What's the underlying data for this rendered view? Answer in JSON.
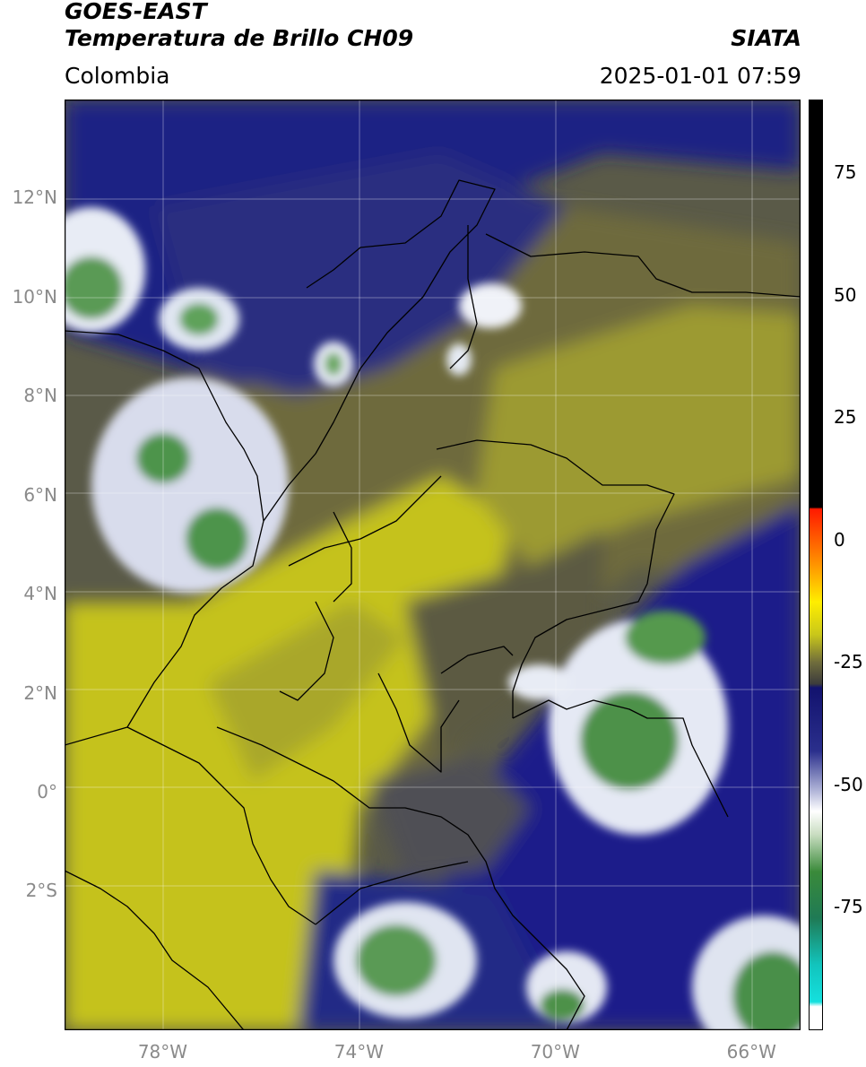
{
  "header": {
    "satellite": "GOES-EAST",
    "product": "Temperatura de Brillo CH09",
    "brand": "SIATA",
    "region": "Colombia",
    "timestamp": "2025-01-01 07:59"
  },
  "map": {
    "lon_range": [
      -80,
      -65
    ],
    "lat_range": [
      -4.8,
      14
    ],
    "lat_ticks": [
      {
        "v": 12,
        "label": "12°N"
      },
      {
        "v": 10,
        "label": "10°N"
      },
      {
        "v": 8,
        "label": "8°N"
      },
      {
        "v": 6,
        "label": "6°N"
      },
      {
        "v": 4,
        "label": "4°N"
      },
      {
        "v": 2,
        "label": "2°N"
      },
      {
        "v": 0,
        "label": "0°"
      },
      {
        "v": -2,
        "label": "2°S"
      }
    ],
    "lon_ticks": [
      {
        "v": -78,
        "label": "78°W"
      },
      {
        "v": -74,
        "label": "74°W"
      },
      {
        "v": -70,
        "label": "70°W"
      },
      {
        "v": -66,
        "label": "66°W"
      }
    ],
    "grid": true
  },
  "colorbar": {
    "range": [
      -100,
      90
    ],
    "ticks": [
      {
        "v": 75,
        "label": "75"
      },
      {
        "v": 50,
        "label": "50"
      },
      {
        "v": 25,
        "label": "25"
      },
      {
        "v": 0,
        "label": "0"
      },
      {
        "v": -25,
        "label": "-25"
      },
      {
        "v": -50,
        "label": "-50"
      },
      {
        "v": -75,
        "label": "-75"
      }
    ]
  },
  "colors": {
    "yellow": "#c9c71a",
    "olive": "#6f6c3c",
    "navy": "#1a1f82",
    "white": "#ffffff",
    "green": "#3a8a3a",
    "cyan": "#14d6d2"
  }
}
